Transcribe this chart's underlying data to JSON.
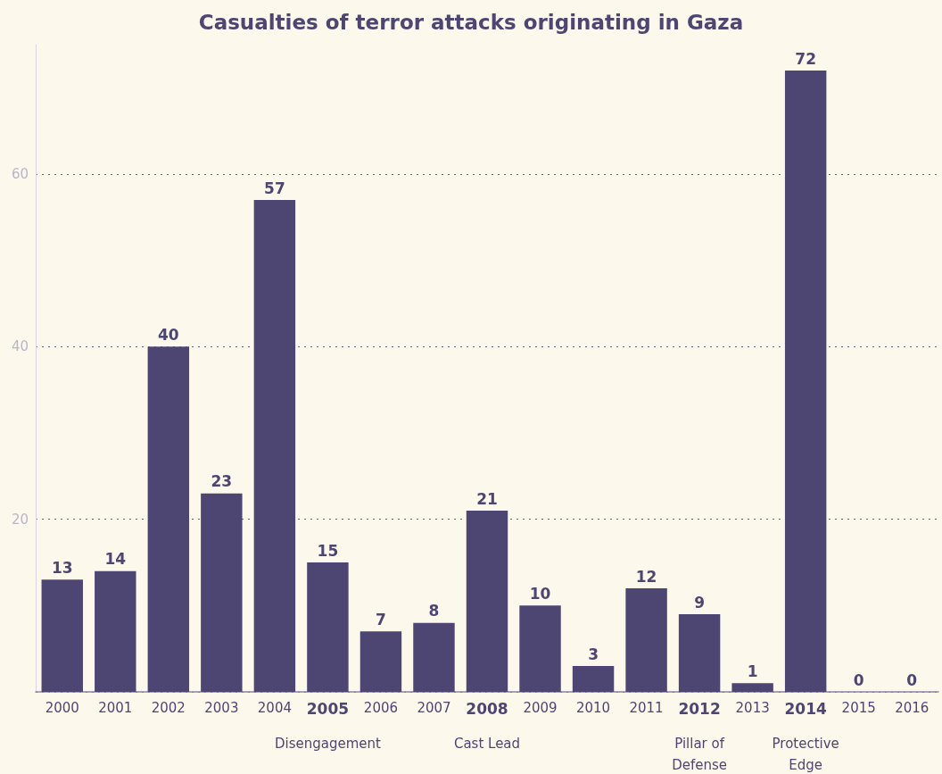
{
  "chart_data": {
    "type": "bar",
    "title": "Casualties of terror attacks originating in Gaza",
    "categories": [
      "2000",
      "2001",
      "2002",
      "2003",
      "2004",
      "2005",
      "2006",
      "2007",
      "2008",
      "2009",
      "2010",
      "2011",
      "2012",
      "2013",
      "2014",
      "2015",
      "2016"
    ],
    "values": [
      13,
      14,
      40,
      23,
      57,
      15,
      7,
      8,
      21,
      10,
      3,
      12,
      9,
      1,
      72,
      0,
      0
    ],
    "color": "#4e4672",
    "ylim": [
      0,
      75
    ],
    "yticks": [
      {
        "value": 0,
        "label": null
      },
      20,
      40,
      60
    ],
    "grid": "y",
    "data_labels": true,
    "annotations": [
      "Disengagement",
      "Cast Lead",
      "Pillar of\nDefense",
      "Protective\nEdge"
    ]
  }
}
